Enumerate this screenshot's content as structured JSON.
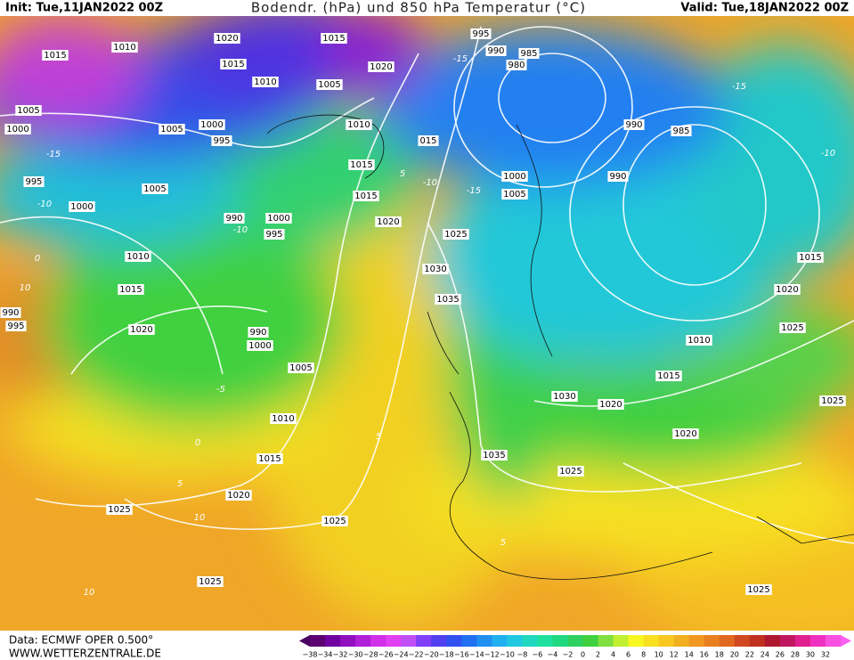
{
  "header": {
    "init": "Init: Tue,11JAN2022 00Z",
    "title": "Bodendr. (hPa) und 850 hPa Temperatur (°C)",
    "valid": "Valid: Tue,18JAN2022 00Z"
  },
  "footer": {
    "source": "Data: ECMWF OPER 0.500°",
    "website": "WWW.WETTERZENTRALE.DE"
  },
  "colorbar": {
    "labels": [
      "−38",
      "−34",
      "−32",
      "−30",
      "−28",
      "−26",
      "−24",
      "−22",
      "−20",
      "−18",
      "−16",
      "−14",
      "−12",
      "−10",
      "−8",
      "−6",
      "−4",
      "−2",
      "0",
      "2",
      "4",
      "6",
      "8",
      "10",
      "12",
      "14",
      "16",
      "18",
      "20",
      "22",
      "24",
      "26",
      "28",
      "30",
      "32"
    ]
  },
  "isobar_labels": [
    "1015",
    "1010",
    "1020",
    "1015",
    "1015",
    "1010",
    "1005",
    "1020",
    "995",
    "990",
    "985",
    "980",
    "1005",
    "1000",
    "1005",
    "1000",
    "995",
    "1010",
    "015",
    "990",
    "985",
    "995",
    "1005",
    "1015",
    "1015",
    "1000",
    "1005",
    "990",
    "1000",
    "990",
    "1000",
    "995",
    "1020",
    "1025",
    "1010",
    "1030",
    "1015",
    "1015",
    "1020",
    "1035",
    "990",
    "995",
    "1020",
    "990",
    "1000",
    "1025",
    "1010",
    "1005",
    "1015",
    "1030",
    "1020",
    "1025",
    "1010",
    "1020",
    "1015",
    "1035",
    "1025",
    "1020",
    "1025",
    "1025",
    "1025",
    "1025"
  ],
  "temperature_labels": [
    "-15",
    "-15",
    "-10",
    "5",
    "-10",
    "-15",
    "-10",
    "0",
    "10",
    "-5",
    "0",
    "5",
    "5",
    "10",
    "10",
    "5",
    "-15",
    "-10"
  ]
}
